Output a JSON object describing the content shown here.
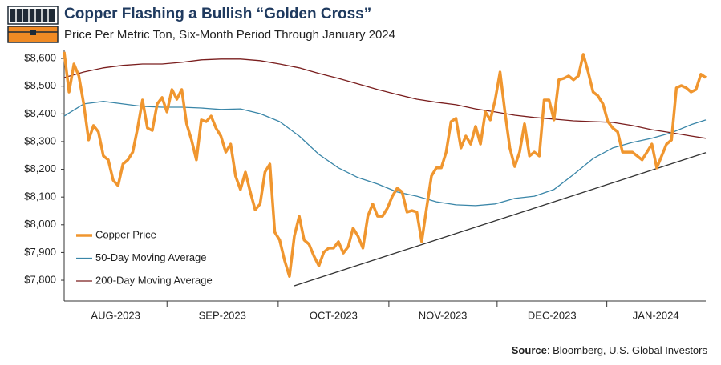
{
  "chart_data": {
    "type": "line",
    "title": "Copper Flashing a Bullish “Golden Cross”",
    "subtitle": "Price Per Metric Ton, Six-Month Period Through January 2024",
    "source_label": "Source",
    "source": ": Bloomberg, U.S. Global Investors",
    "xlim": [
      0,
      131
    ],
    "xticks": [
      {
        "value": 10.5,
        "label": "AUG-2023"
      },
      {
        "value": 32.3,
        "label": "SEP-2023"
      },
      {
        "value": 55,
        "label": "OCT-2023"
      },
      {
        "value": 77.3,
        "label": "NOV-2023"
      },
      {
        "value": 99.6,
        "label": "DEC-2023"
      },
      {
        "value": 120.8,
        "label": "JAN-2024"
      }
    ],
    "xminor": [
      21,
      43.7,
      66.3,
      88.4,
      110.8
    ],
    "ylim": [
      7725,
      8632
    ],
    "yticks": [
      {
        "value": 7800,
        "label": "$7,800"
      },
      {
        "value": 7900,
        "label": "$7,900"
      },
      {
        "value": 8000,
        "label": "$8,000"
      },
      {
        "value": 8100,
        "label": "$8,100"
      },
      {
        "value": 8200,
        "label": "$8,200"
      },
      {
        "value": 8300,
        "label": "$8,300"
      },
      {
        "value": 8400,
        "label": "$8,400"
      },
      {
        "value": 8500,
        "label": "$8,500"
      },
      {
        "value": 8600,
        "label": "$8,600"
      }
    ],
    "grid": false,
    "legend": "lower left",
    "series": [
      {
        "name": "Copper Price",
        "color": "#f0962f",
        "width": 3.5,
        "x": [
          0,
          1,
          2,
          3,
          4,
          5,
          6,
          7,
          8,
          9,
          10,
          11,
          12,
          13,
          14,
          15,
          16,
          17,
          18,
          19,
          20,
          21,
          22,
          23,
          24,
          25,
          26,
          27,
          28,
          29,
          30,
          31,
          32,
          33,
          34,
          35,
          36,
          37,
          38,
          39,
          40,
          41,
          42,
          43,
          44,
          45,
          46,
          47,
          48,
          49,
          50,
          51,
          52,
          53,
          54,
          55,
          56,
          57,
          58,
          59,
          60,
          61,
          62,
          63,
          64,
          65,
          66,
          67,
          68,
          69,
          70,
          71,
          72,
          73,
          74,
          75,
          76,
          77,
          78,
          79,
          80,
          81,
          82,
          83,
          84,
          85,
          86,
          87,
          88,
          89,
          90,
          91,
          92,
          93,
          94,
          95,
          96,
          97,
          98,
          99,
          100,
          101,
          102,
          103,
          104,
          105,
          106,
          107,
          108,
          109,
          110,
          111,
          112,
          113,
          114,
          115,
          116,
          117,
          118,
          119,
          120,
          121,
          122,
          123,
          124,
          125,
          126,
          127,
          128,
          129,
          130,
          131
        ],
        "values": [
          8624,
          8479,
          8580,
          8537,
          8436,
          8306,
          8358,
          8335,
          8248,
          8234,
          8161,
          8141,
          8219,
          8234,
          8262,
          8349,
          8450,
          8349,
          8340,
          8436,
          8459,
          8407,
          8488,
          8453,
          8488,
          8364,
          8306,
          8234,
          8378,
          8372,
          8392,
          8349,
          8320,
          8262,
          8291,
          8176,
          8127,
          8190,
          8118,
          8054,
          8075,
          8190,
          8219,
          7973,
          7945,
          7872,
          7814,
          7959,
          8031,
          7945,
          7930,
          7887,
          7852,
          7901,
          7916,
          7916,
          7939,
          7898,
          7921,
          7988,
          7959,
          7916,
          8031,
          8075,
          8031,
          8031,
          8060,
          8103,
          8132,
          8118,
          8046,
          8051,
          8046,
          7939,
          8060,
          8176,
          8205,
          8205,
          8262,
          8372,
          8384,
          8277,
          8320,
          8291,
          8355,
          8291,
          8407,
          8378,
          8450,
          8551,
          8407,
          8277,
          8210,
          8262,
          8364,
          8248,
          8262,
          8248,
          8450,
          8450,
          8378,
          8523,
          8528,
          8537,
          8523,
          8537,
          8615,
          8551,
          8479,
          8465,
          8436,
          8372,
          8349,
          8335,
          8262,
          8262,
          8262,
          8248,
          8234,
          8262,
          8291,
          8205,
          8248,
          8291,
          8306,
          8494,
          8502,
          8494,
          8479,
          8488,
          8543,
          8531
        ]
      },
      {
        "name": "50-Day Moving Average",
        "color": "#3a86a8",
        "width": 1.3,
        "x": [
          0,
          4,
          8,
          12,
          16,
          20,
          24,
          28,
          32,
          36,
          40,
          44,
          48,
          52,
          56,
          60,
          64,
          68,
          72,
          76,
          80,
          84,
          88,
          92,
          96,
          100,
          104,
          108,
          112,
          116,
          120,
          124,
          128,
          131
        ],
        "values": [
          8392,
          8436,
          8445,
          8436,
          8427,
          8424,
          8424,
          8421,
          8416,
          8418,
          8401,
          8372,
          8320,
          8254,
          8205,
          8170,
          8147,
          8118,
          8103,
          8083,
          8072,
          8069,
          8075,
          8095,
          8103,
          8127,
          8181,
          8239,
          8277,
          8297,
          8312,
          8332,
          8361,
          8378
        ]
      },
      {
        "name": "200-Day Moving Average",
        "color": "#7a1e1e",
        "width": 1.3,
        "x": [
          0,
          4,
          8,
          12,
          16,
          20,
          24,
          28,
          32,
          36,
          40,
          44,
          48,
          52,
          56,
          60,
          64,
          68,
          72,
          76,
          80,
          84,
          88,
          92,
          96,
          100,
          104,
          108,
          112,
          116,
          120,
          124,
          128,
          131
        ],
        "values": [
          8531,
          8551,
          8566,
          8575,
          8580,
          8580,
          8586,
          8595,
          8598,
          8598,
          8592,
          8580,
          8566,
          8546,
          8528,
          8508,
          8488,
          8470,
          8453,
          8442,
          8433,
          8418,
          8407,
          8395,
          8387,
          8381,
          8375,
          8372,
          8369,
          8358,
          8343,
          8332,
          8320,
          8312
        ]
      }
    ],
    "trendline": {
      "color": "#333333",
      "x": [
        47,
        131
      ],
      "values": [
        7780,
        8260
      ]
    }
  }
}
